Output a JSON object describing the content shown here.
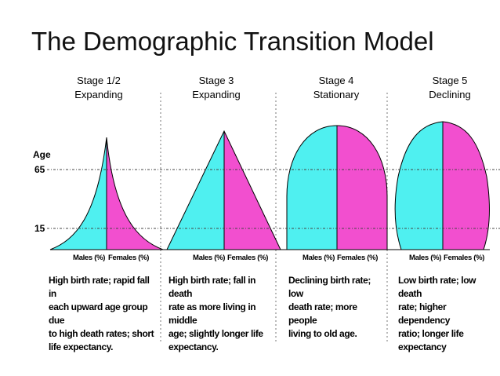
{
  "title": "The Demographic Transition Model",
  "axis": {
    "age_label": "Age",
    "age_65": "65",
    "age_15": "15"
  },
  "colors": {
    "males": "#4ff0f0",
    "females": "#f24fcf",
    "outline": "#000000",
    "guide": "#666666"
  },
  "stages": [
    {
      "line1": "Stage 1/2",
      "line2": "Expanding",
      "males": "Males (%)",
      "females": "Females (%)",
      "description": "High birth rate; rapid fall in\neach upward age group due\nto high death rates; short\nlife expectancy."
    },
    {
      "line1": "Stage 3",
      "line2": "Expanding",
      "males": "Males (%)",
      "females": "Females (%)",
      "description": "High birth rate; fall in death\nrate as more living in middle\nage; slightly longer life\nexpectancy."
    },
    {
      "line1": "Stage 4",
      "line2": "Stationary",
      "males": "Males (%)",
      "females": "Females (%)",
      "description": "Declining birth rate; low\ndeath rate; more people\nliving to old age."
    },
    {
      "line1": "Stage 5",
      "line2": "Declining",
      "males": "Males (%)",
      "females": "Females (%)",
      "description": "Low birth rate; low death\nrate; higher dependency\nratio; longer life expectancy"
    }
  ]
}
